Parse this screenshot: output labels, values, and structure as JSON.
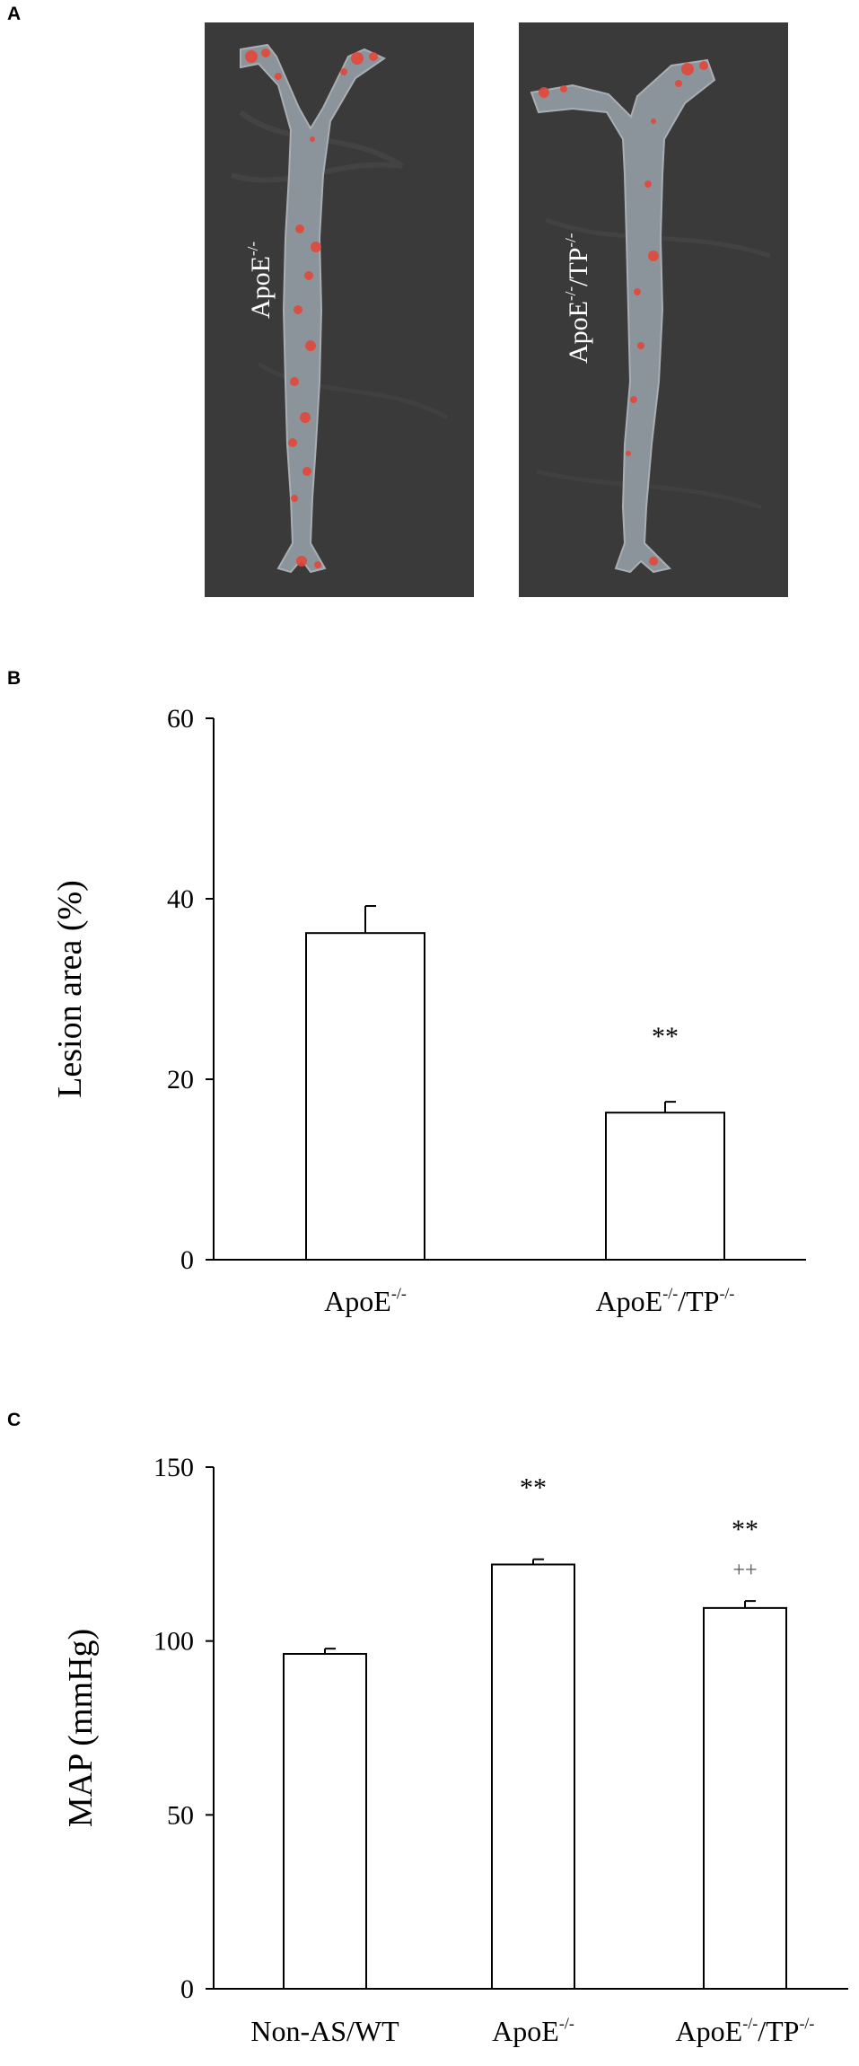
{
  "panels": {
    "a": {
      "letter": "A"
    },
    "b": {
      "letter": "B"
    },
    "c": {
      "letter": "C"
    }
  },
  "photos": [
    {
      "label_base": "ApoE",
      "label_sup": "-/-",
      "label_mid": "",
      "label_sup2": ""
    },
    {
      "label_base": "ApoE",
      "label_sup": "-/-",
      "label_mid": "/TP",
      "label_sup2": "-/-"
    }
  ],
  "colors": {
    "photo_background": "#3d3d3d",
    "aorta_tissue": "#8e959c",
    "lesion_stain": "#e2483a"
  },
  "chart_data": [
    {
      "type": "bar",
      "panel": "B",
      "ylabel": "Lesion area (%)",
      "ylim": [
        0,
        60
      ],
      "yticks": [
        0,
        20,
        40,
        60
      ],
      "categories": [
        {
          "base": "ApoE",
          "sup": "-/-",
          "mid": "",
          "sup2": ""
        },
        {
          "base": "ApoE",
          "sup": "-/-",
          "mid": "/TP",
          "sup2": "-/-"
        }
      ],
      "values": [
        36.2,
        16.3
      ],
      "errors": [
        3.0,
        1.2
      ],
      "annotations": [
        "",
        "**"
      ],
      "annotations2": [
        "",
        ""
      ]
    },
    {
      "type": "bar",
      "panel": "C",
      "ylabel": "MAP (mmHg)",
      "ylim": [
        0,
        150
      ],
      "yticks": [
        0,
        50,
        100,
        150
      ],
      "categories": [
        {
          "base": "Non-AS/WT",
          "sup": "",
          "mid": "",
          "sup2": ""
        },
        {
          "base": "ApoE",
          "sup": "-/-",
          "mid": "",
          "sup2": ""
        },
        {
          "base": "ApoE",
          "sup": "-/-",
          "mid": "/TP",
          "sup2": "-/-"
        }
      ],
      "values": [
        96.3,
        122.0,
        109.5
      ],
      "errors": [
        1.5,
        1.5,
        2.0
      ],
      "annotations": [
        "",
        "**",
        "**"
      ],
      "annotations2": [
        "",
        "",
        "++"
      ]
    }
  ]
}
